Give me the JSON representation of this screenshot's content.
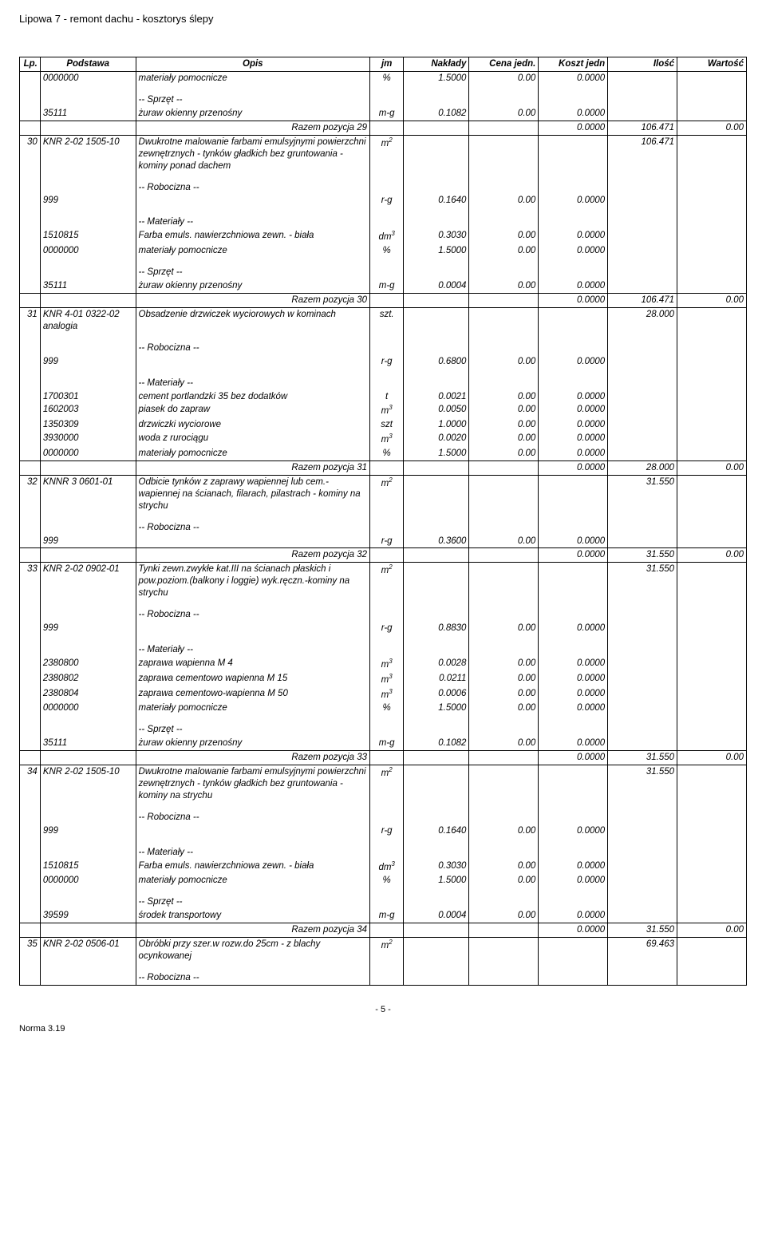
{
  "title": "Lipowa 7 - remont dachu - kosztorys ślepy",
  "headers": {
    "lp": "Lp.",
    "podstawa": "Podstawa",
    "opis": "Opis",
    "jm": "jm",
    "naklady": "Nakłady",
    "cenajedn": "Cena jedn.",
    "kosztjedn": "Koszt jedn",
    "ilosc": "Ilość",
    "wartosc": "Wartość"
  },
  "labels": {
    "robocizna": "-- Robocizna --",
    "materialy": "-- Materiały --",
    "sprzet": "-- Sprzęt --"
  },
  "r29_first": {
    "pod": "0000000",
    "opis": "materiały pomocnicze",
    "jm": "%",
    "nak": "1.5000",
    "cj": "0.00",
    "kj": "0.0000"
  },
  "r29_sprzet": {
    "pod": "35111",
    "opis": "żuraw okienny przenośny",
    "jm": "m-g",
    "nak": "0.1082",
    "cj": "0.00",
    "kj": "0.0000"
  },
  "r29_sum": {
    "label": "Razem pozycja 29",
    "kj": "0.0000",
    "il": "106.471",
    "war": "0.00"
  },
  "p30": {
    "lp": "30",
    "pod": "KNR 2-02 1505-10",
    "opis": "Dwukrotne malowanie farbami emulsyjnymi powierzchni zewnętrznych - tynków gładkich bez gruntowania - kominy ponad dachem",
    "jm": "m",
    "jmsup": "2",
    "il": "106.471",
    "rob": {
      "pod": "999",
      "jm": "r-g",
      "nak": "0.1640",
      "cj": "0.00",
      "kj": "0.0000"
    },
    "mat1": {
      "pod": "1510815",
      "opis": "Farba emuls. nawierzchniowa zewn. - biała",
      "jm": "dm",
      "jmsup": "3",
      "nak": "0.3030",
      "cj": "0.00",
      "kj": "0.0000"
    },
    "mat2": {
      "pod": "0000000",
      "opis": "materiały pomocnicze",
      "jm": "%",
      "nak": "1.5000",
      "cj": "0.00",
      "kj": "0.0000"
    },
    "spr": {
      "pod": "35111",
      "opis": "żuraw okienny przenośny",
      "jm": "m-g",
      "nak": "0.0004",
      "cj": "0.00",
      "kj": "0.0000"
    },
    "sum": {
      "label": "Razem pozycja 30",
      "kj": "0.0000",
      "il": "106.471",
      "war": "0.00"
    }
  },
  "p31": {
    "lp": "31",
    "pod": "KNR 4-01 0322-02 analogia",
    "opis": "Obsadzenie drzwiczek wyciorowych w kominach",
    "jm": "szt.",
    "il": "28.000",
    "rob": {
      "pod": "999",
      "jm": "r-g",
      "nak": "0.6800",
      "cj": "0.00",
      "kj": "0.0000"
    },
    "mat1": {
      "pod": "1700301",
      "opis": "cement portlandzki 35 bez dodatków",
      "jm": "t",
      "nak": "0.0021",
      "cj": "0.00",
      "kj": "0.0000"
    },
    "mat2": {
      "pod": "1602003",
      "opis": "piasek do zapraw",
      "jm": "m",
      "jmsup": "3",
      "nak": "0.0050",
      "cj": "0.00",
      "kj": "0.0000"
    },
    "mat3": {
      "pod": "1350309",
      "opis": "drzwiczki wyciorowe",
      "jm": "szt",
      "nak": "1.0000",
      "cj": "0.00",
      "kj": "0.0000"
    },
    "mat4": {
      "pod": "3930000",
      "opis": "woda z rurociągu",
      "jm": "m",
      "jmsup": "3",
      "nak": "0.0020",
      "cj": "0.00",
      "kj": "0.0000"
    },
    "mat5": {
      "pod": "0000000",
      "opis": "materiały pomocnicze",
      "jm": "%",
      "nak": "1.5000",
      "cj": "0.00",
      "kj": "0.0000"
    },
    "sum": {
      "label": "Razem pozycja 31",
      "kj": "0.0000",
      "il": "28.000",
      "war": "0.00"
    }
  },
  "p32": {
    "lp": "32",
    "pod": "KNNR 3 0601-01",
    "opis": "Odbicie tynków z zaprawy wapiennej lub cem.-wapiennej na ścianach, filarach, pilastrach - kominy na strychu",
    "jm": "m",
    "jmsup": "2",
    "il": "31.550",
    "rob": {
      "pod": "999",
      "jm": "r-g",
      "nak": "0.3600",
      "cj": "0.00",
      "kj": "0.0000"
    },
    "sum": {
      "label": "Razem pozycja 32",
      "kj": "0.0000",
      "il": "31.550",
      "war": "0.00"
    }
  },
  "p33": {
    "lp": "33",
    "pod": "KNR 2-02 0902-01",
    "opis": "Tynki zewn.zwykłe kat.III na ścianach płaskich i pow.poziom.(balkony i loggie) wyk.ręczn.-kominy na strychu",
    "jm": "m",
    "jmsup": "2",
    "il": "31.550",
    "rob": {
      "pod": "999",
      "jm": "r-g",
      "nak": "0.8830",
      "cj": "0.00",
      "kj": "0.0000"
    },
    "mat1": {
      "pod": "2380800",
      "opis": "zaprawa wapienna M 4",
      "jm": "m",
      "jmsup": "3",
      "nak": "0.0028",
      "cj": "0.00",
      "kj": "0.0000"
    },
    "mat2": {
      "pod": "2380802",
      "opis": "zaprawa cementowo wapienna M 15",
      "jm": "m",
      "jmsup": "3",
      "nak": "0.0211",
      "cj": "0.00",
      "kj": "0.0000"
    },
    "mat3": {
      "pod": "2380804",
      "opis": "zaprawa cementowo-wapienna M 50",
      "jm": "m",
      "jmsup": "3",
      "nak": "0.0006",
      "cj": "0.00",
      "kj": "0.0000"
    },
    "mat4": {
      "pod": "0000000",
      "opis": "materiały pomocnicze",
      "jm": "%",
      "nak": "1.5000",
      "cj": "0.00",
      "kj": "0.0000"
    },
    "spr": {
      "pod": "35111",
      "opis": "żuraw okienny przenośny",
      "jm": "m-g",
      "nak": "0.1082",
      "cj": "0.00",
      "kj": "0.0000"
    },
    "sum": {
      "label": "Razem pozycja 33",
      "kj": "0.0000",
      "il": "31.550",
      "war": "0.00"
    }
  },
  "p34": {
    "lp": "34",
    "pod": "KNR 2-02 1505-10",
    "opis": "Dwukrotne malowanie farbami emulsyjnymi powierzchni zewnętrznych - tynków gładkich bez gruntowania - kominy na strychu",
    "jm": "m",
    "jmsup": "2",
    "il": "31.550",
    "rob": {
      "pod": "999",
      "jm": "r-g",
      "nak": "0.1640",
      "cj": "0.00",
      "kj": "0.0000"
    },
    "mat1": {
      "pod": "1510815",
      "opis": "Farba emuls. nawierzchniowa zewn. - biała",
      "jm": "dm",
      "jmsup": "3",
      "nak": "0.3030",
      "cj": "0.00",
      "kj": "0.0000"
    },
    "mat2": {
      "pod": "0000000",
      "opis": "materiały pomocnicze",
      "jm": "%",
      "nak": "1.5000",
      "cj": "0.00",
      "kj": "0.0000"
    },
    "spr": {
      "pod": "39599",
      "opis": "środek transportowy",
      "jm": "m-g",
      "nak": "0.0004",
      "cj": "0.00",
      "kj": "0.0000"
    },
    "sum": {
      "label": "Razem pozycja 34",
      "kj": "0.0000",
      "il": "31.550",
      "war": "0.00"
    }
  },
  "p35": {
    "lp": "35",
    "pod": "KNR 2-02 0506-01",
    "opis": "Obróbki przy szer.w rozw.do 25cm - z blachy ocynkowanej",
    "jm": "m",
    "jmsup": "2",
    "il": "69.463"
  },
  "page_num": "- 5 -",
  "footer": "Norma 3.19",
  "colors": {
    "text": "#000000",
    "bg": "#ffffff",
    "border": "#000000"
  }
}
